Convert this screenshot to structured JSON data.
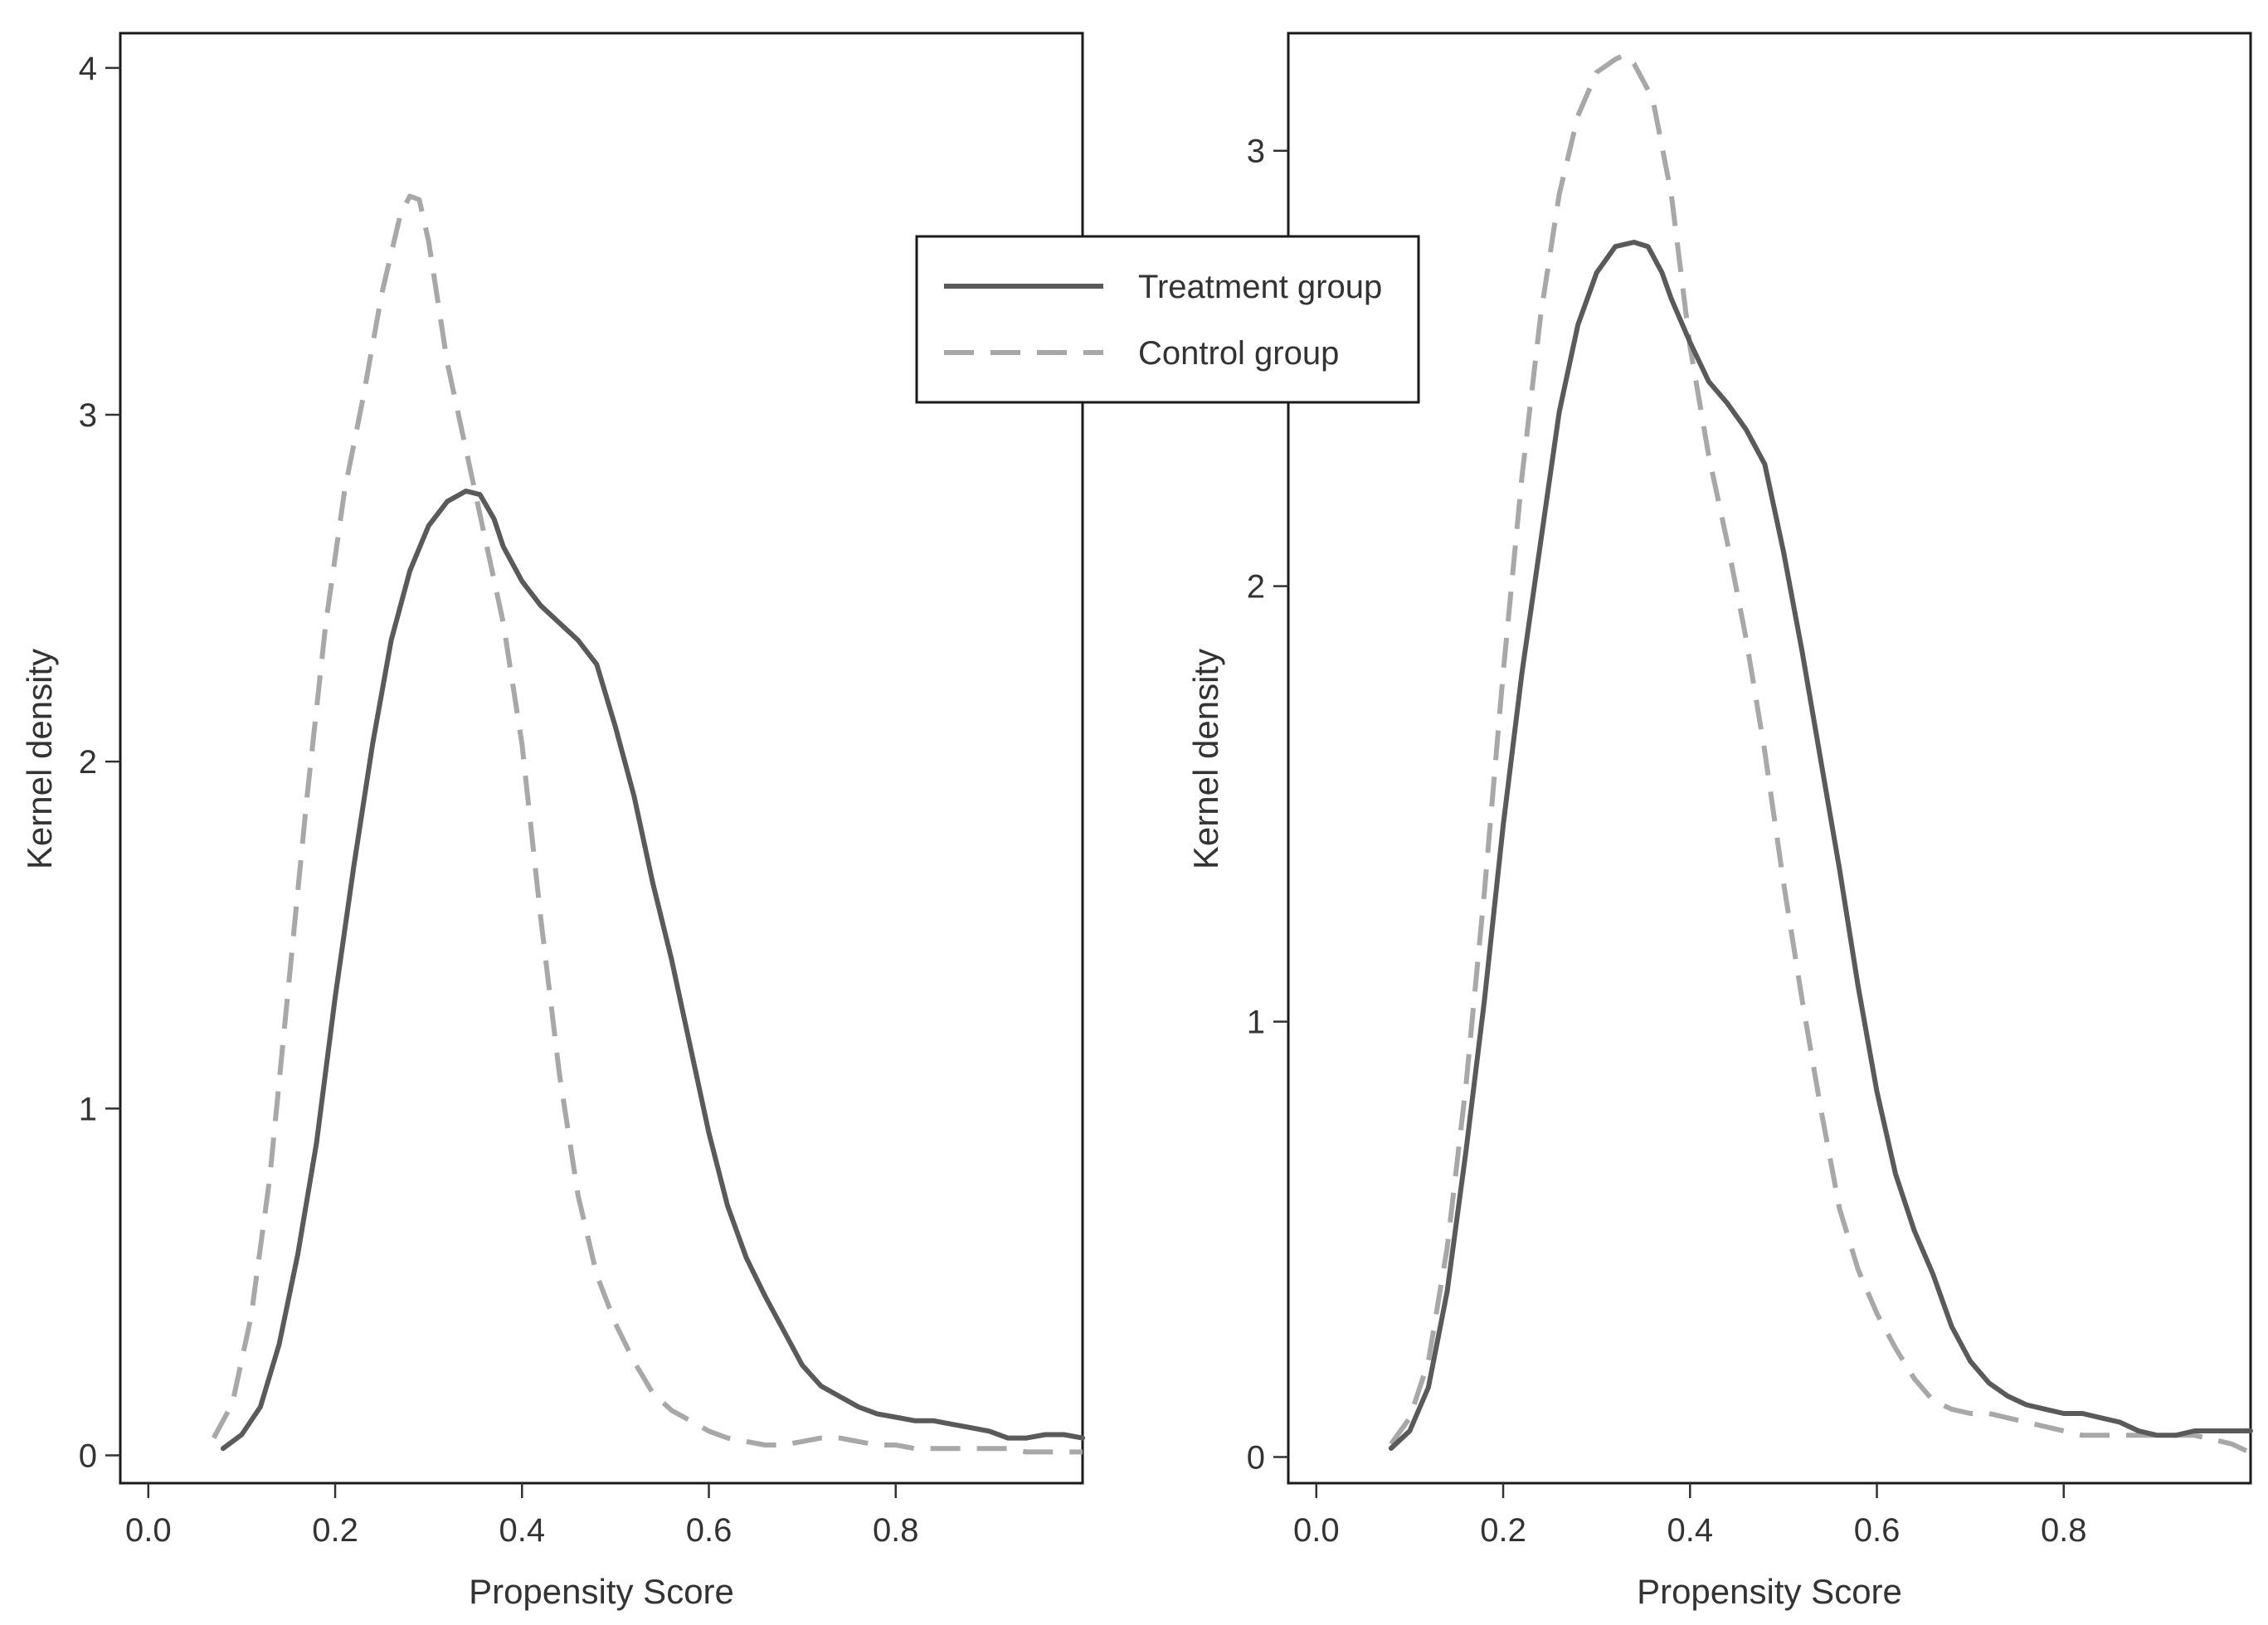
{
  "chart_data": [
    {
      "type": "line",
      "xlabel": "Propensity Score",
      "ylabel": "Kernel density",
      "xlim": [
        -0.03,
        1.0
      ],
      "ylim": [
        -0.08,
        4.1
      ],
      "xticks": [
        "0.0",
        "0.2",
        "0.4",
        "0.6",
        "0.8"
      ],
      "xtick_values": [
        0.0,
        0.2,
        0.4,
        0.6,
        0.8
      ],
      "yticks": [
        "0",
        "1",
        "2",
        "3",
        "4"
      ],
      "ytick_values": [
        0,
        1,
        2,
        3,
        4
      ],
      "grid": false,
      "series": [
        {
          "name": "Treatment group",
          "style": "solid",
          "color": "#5a5a5a",
          "x": [
            0.08,
            0.1,
            0.12,
            0.14,
            0.16,
            0.18,
            0.2,
            0.22,
            0.24,
            0.26,
            0.28,
            0.3,
            0.32,
            0.34,
            0.355,
            0.37,
            0.38,
            0.4,
            0.42,
            0.44,
            0.46,
            0.48,
            0.5,
            0.52,
            0.54,
            0.56,
            0.58,
            0.6,
            0.62,
            0.64,
            0.66,
            0.68,
            0.7,
            0.72,
            0.74,
            0.76,
            0.78,
            0.8,
            0.82,
            0.84,
            0.86,
            0.88,
            0.9,
            0.92,
            0.94,
            0.96,
            0.98,
            1.0
          ],
          "y": [
            0.02,
            0.06,
            0.14,
            0.32,
            0.58,
            0.9,
            1.32,
            1.7,
            2.05,
            2.35,
            2.55,
            2.68,
            2.75,
            2.78,
            2.77,
            2.7,
            2.62,
            2.52,
            2.45,
            2.4,
            2.35,
            2.28,
            2.1,
            1.9,
            1.65,
            1.43,
            1.18,
            0.93,
            0.72,
            0.57,
            0.46,
            0.36,
            0.26,
            0.2,
            0.17,
            0.14,
            0.12,
            0.11,
            0.1,
            0.1,
            0.09,
            0.08,
            0.07,
            0.05,
            0.05,
            0.06,
            0.06,
            0.05
          ]
        },
        {
          "name": "Control group",
          "style": "dashed",
          "color": "#a8a8a8",
          "x": [
            0.07,
            0.09,
            0.11,
            0.13,
            0.15,
            0.17,
            0.19,
            0.21,
            0.23,
            0.25,
            0.27,
            0.28,
            0.29,
            0.3,
            0.32,
            0.34,
            0.36,
            0.38,
            0.4,
            0.42,
            0.44,
            0.46,
            0.48,
            0.5,
            0.52,
            0.54,
            0.56,
            0.58,
            0.6,
            0.62,
            0.64,
            0.66,
            0.68,
            0.7,
            0.72,
            0.74,
            0.76,
            0.78,
            0.8,
            0.82,
            0.84,
            0.86,
            0.88,
            0.9,
            0.92,
            0.94,
            0.96,
            0.98,
            1.0
          ],
          "y": [
            0.05,
            0.15,
            0.4,
            0.8,
            1.35,
            1.9,
            2.4,
            2.78,
            3.05,
            3.35,
            3.58,
            3.63,
            3.62,
            3.5,
            3.15,
            2.9,
            2.65,
            2.4,
            2.05,
            1.55,
            1.1,
            0.75,
            0.52,
            0.38,
            0.27,
            0.18,
            0.13,
            0.1,
            0.07,
            0.05,
            0.04,
            0.03,
            0.03,
            0.04,
            0.05,
            0.05,
            0.04,
            0.03,
            0.03,
            0.02,
            0.02,
            0.02,
            0.02,
            0.02,
            0.02,
            0.01,
            0.01,
            0.01,
            0.01
          ]
        }
      ]
    },
    {
      "type": "line",
      "xlabel": "Propensity Score",
      "ylabel": "Kernel density",
      "xlim": [
        -0.03,
        1.0
      ],
      "ylim": [
        -0.06,
        3.27
      ],
      "xticks": [
        "0.0",
        "0.2",
        "0.4",
        "0.6",
        "0.8"
      ],
      "xtick_values": [
        0.0,
        0.2,
        0.4,
        0.6,
        0.8
      ],
      "yticks": [
        "0",
        "1",
        "2",
        "3"
      ],
      "ytick_values": [
        0,
        1,
        2,
        3
      ],
      "grid": false,
      "series": [
        {
          "name": "Treatment group",
          "style": "solid",
          "color": "#5a5a5a",
          "x": [
            0.08,
            0.1,
            0.12,
            0.14,
            0.16,
            0.18,
            0.2,
            0.22,
            0.24,
            0.26,
            0.28,
            0.3,
            0.32,
            0.34,
            0.355,
            0.37,
            0.38,
            0.4,
            0.42,
            0.44,
            0.46,
            0.48,
            0.5,
            0.52,
            0.54,
            0.56,
            0.58,
            0.6,
            0.62,
            0.64,
            0.66,
            0.68,
            0.7,
            0.72,
            0.74,
            0.76,
            0.78,
            0.8,
            0.82,
            0.84,
            0.86,
            0.88,
            0.9,
            0.92,
            0.94,
            0.96,
            0.98,
            1.0
          ],
          "y": [
            0.02,
            0.06,
            0.16,
            0.38,
            0.7,
            1.05,
            1.45,
            1.8,
            2.1,
            2.4,
            2.6,
            2.72,
            2.78,
            2.79,
            2.78,
            2.72,
            2.66,
            2.56,
            2.47,
            2.42,
            2.36,
            2.28,
            2.08,
            1.85,
            1.6,
            1.35,
            1.08,
            0.84,
            0.65,
            0.52,
            0.42,
            0.3,
            0.22,
            0.17,
            0.14,
            0.12,
            0.11,
            0.1,
            0.1,
            0.09,
            0.08,
            0.06,
            0.05,
            0.05,
            0.06,
            0.06,
            0.06,
            0.06
          ]
        },
        {
          "name": "Control group",
          "style": "dashed",
          "color": "#a8a8a8",
          "x": [
            0.08,
            0.1,
            0.12,
            0.14,
            0.16,
            0.18,
            0.2,
            0.22,
            0.24,
            0.26,
            0.28,
            0.3,
            0.32,
            0.33,
            0.34,
            0.36,
            0.38,
            0.4,
            0.42,
            0.44,
            0.46,
            0.48,
            0.5,
            0.52,
            0.54,
            0.56,
            0.58,
            0.6,
            0.62,
            0.64,
            0.66,
            0.68,
            0.7,
            0.72,
            0.74,
            0.76,
            0.78,
            0.8,
            0.82,
            0.84,
            0.86,
            0.88,
            0.9,
            0.92,
            0.94,
            0.96,
            0.98,
            1.0
          ],
          "y": [
            0.03,
            0.09,
            0.22,
            0.48,
            0.85,
            1.3,
            1.8,
            2.25,
            2.62,
            2.9,
            3.08,
            3.18,
            3.21,
            3.22,
            3.2,
            3.12,
            2.9,
            2.55,
            2.3,
            2.1,
            1.88,
            1.62,
            1.32,
            1.05,
            0.8,
            0.57,
            0.43,
            0.33,
            0.25,
            0.18,
            0.13,
            0.11,
            0.1,
            0.1,
            0.09,
            0.08,
            0.07,
            0.06,
            0.05,
            0.05,
            0.05,
            0.05,
            0.05,
            0.05,
            0.05,
            0.04,
            0.03,
            0.01
          ]
        }
      ]
    }
  ],
  "legend": {
    "placement": "top-center",
    "entries": [
      {
        "label": "Treatment group",
        "style": "solid"
      },
      {
        "label": "Control group",
        "style": "dashed"
      }
    ]
  }
}
